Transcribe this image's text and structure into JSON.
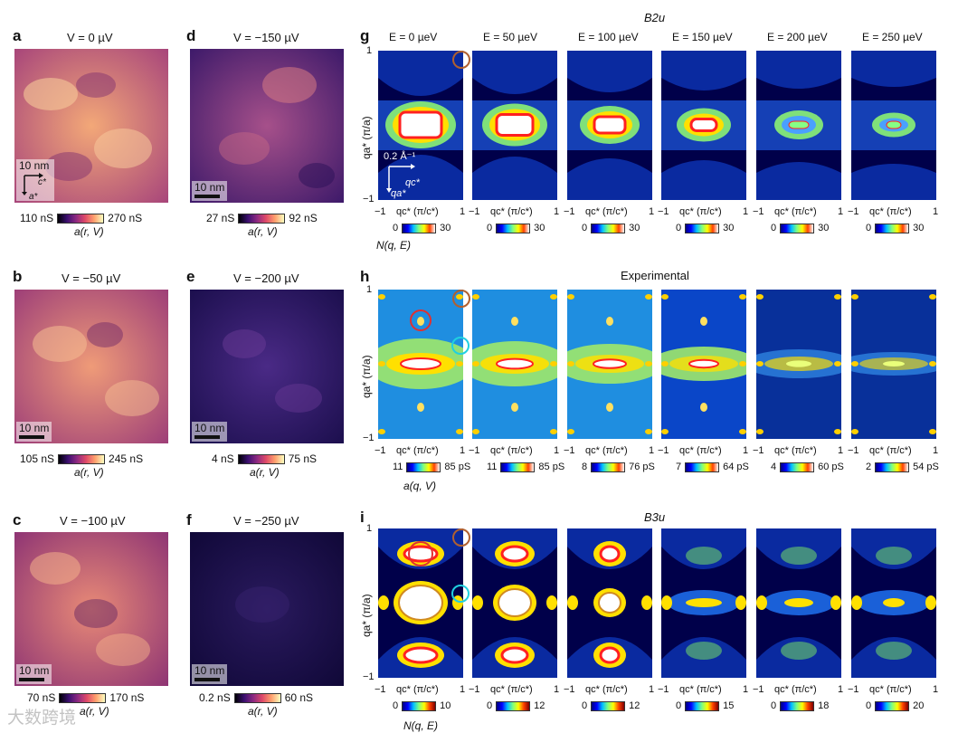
{
  "stm_panels": [
    {
      "id": "a",
      "title": "V = 0 µV",
      "cb_min": "110 nS",
      "cb_max": "270 nS",
      "cb_label": "a(r, V)",
      "scale": "10 nm"
    },
    {
      "id": "b",
      "title": "V = −50 µV",
      "cb_min": "105 nS",
      "cb_max": "245 nS",
      "cb_label": "a(r, V)",
      "scale": "10 nm"
    },
    {
      "id": "c",
      "title": "V = −100 µV",
      "cb_min": "70 nS",
      "cb_max": "170 nS",
      "cb_label": "a(r, V)",
      "scale": "10 nm"
    },
    {
      "id": "d",
      "title": "V = −150 µV",
      "cb_min": "27 nS",
      "cb_max": "92 nS",
      "cb_label": "a(r, V)",
      "scale": "10 nm"
    },
    {
      "id": "e",
      "title": "V = −200 µV",
      "cb_min": "4 nS",
      "cb_max": "75 nS",
      "cb_label": "a(r, V)",
      "scale": "10 nm"
    },
    {
      "id": "f",
      "title": "V = −250 µV",
      "cb_min": "0.2 nS",
      "cb_max": "60 nS",
      "cb_label": "a(r, V)",
      "scale": "10 nm"
    }
  ],
  "axes_a": {
    "c_label": "c*",
    "a_label": "a*"
  },
  "row_g": {
    "id": "g",
    "title": "B2u",
    "energies": [
      "E = 0 µeV",
      "E = 50 µeV",
      "E = 100 µeV",
      "E = 150 µeV",
      "E = 200 µeV",
      "E = 250 µeV"
    ],
    "cb_min": [
      "0",
      "0",
      "0",
      "0",
      "0",
      "0"
    ],
    "cb_max": [
      "30",
      "30",
      "30",
      "30",
      "30",
      "30"
    ],
    "caption": "N(q, E)",
    "inset_scale": "0.2 Å⁻¹",
    "inset_qc": "qc*",
    "inset_qa": "qa*"
  },
  "row_h": {
    "id": "h",
    "title": "Experimental",
    "cb_min": [
      "11",
      "11",
      "8",
      "7",
      "4",
      "2"
    ],
    "cb_max": [
      "85 pS",
      "85 pS",
      "76 pS",
      "64 pS",
      "60 pS",
      "54 pS"
    ],
    "caption": "a(q, V)"
  },
  "row_i": {
    "id": "i",
    "title": "B3u",
    "cb_min": [
      "0",
      "0",
      "0",
      "0",
      "0",
      "0"
    ],
    "cb_max": [
      "10",
      "12",
      "12",
      "15",
      "18",
      "20"
    ],
    "caption": "N(q, E)"
  },
  "axis": {
    "x_label": "qc* (π/c*)",
    "y_label": "qa* (π/a)",
    "tick_neg": "−1",
    "tick_pos": "1"
  },
  "watermark": "大数跨境"
}
